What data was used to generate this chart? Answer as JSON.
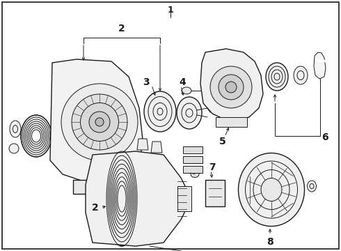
{
  "bg_color": "#ffffff",
  "line_color": "#1a1a1a",
  "label_color": "#000000",
  "font_size_labels": 9,
  "font_weight": "bold",
  "fig_w": 4.9,
  "fig_h": 3.6,
  "dpi": 100
}
